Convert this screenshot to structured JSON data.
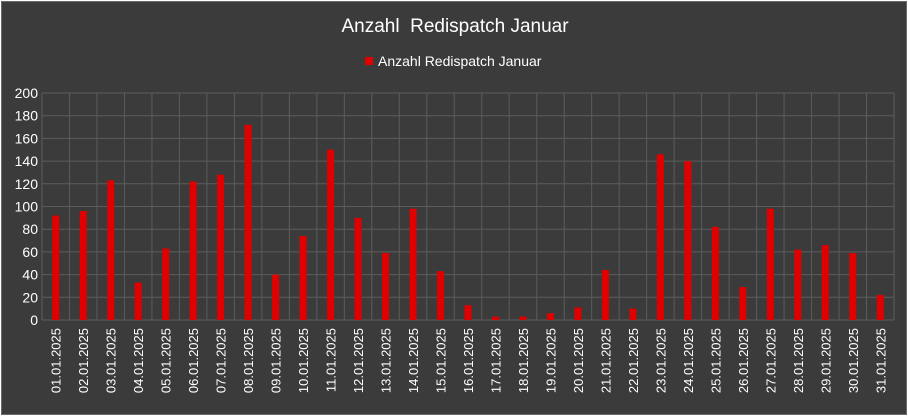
{
  "chart_data": {
    "type": "bar",
    "title": "Anzahl  Redispatch Januar",
    "legend": {
      "position": "top",
      "entries": [
        "Anzahl Redispatch Januar"
      ]
    },
    "xlabel": "",
    "ylabel": "",
    "ylim": [
      0,
      200
    ],
    "yticks": [
      0,
      20,
      40,
      60,
      80,
      100,
      120,
      140,
      160,
      180,
      200
    ],
    "grid": true,
    "colors": {
      "bar": "#e00000",
      "background": "#3b3b3b",
      "grid": "#5c5c5c",
      "text": "#ffffff"
    },
    "categories": [
      "01.01.2025",
      "02.01.2025",
      "03.01.2025",
      "04.01.2025",
      "05.01.2025",
      "06.01.2025",
      "07.01.2025",
      "08.01.2025",
      "09.01.2025",
      "10.01.2025",
      "11.01.2025",
      "12.01.2025",
      "13.01.2025",
      "14.01.2025",
      "15.01.2025",
      "16.01.2025",
      "17.01.2025",
      "18.01.2025",
      "19.01.2025",
      "20.01.2025",
      "21.01.2025",
      "22.01.2025",
      "23.01.2025",
      "24.01.2025",
      "25.01.2025",
      "26.01.2025",
      "27.01.2025",
      "28.01.2025",
      "29.01.2025",
      "30.01.2025",
      "31.01.2025"
    ],
    "series": [
      {
        "name": "Anzahl Redispatch Januar",
        "values": [
          92,
          96,
          123,
          33,
          63,
          122,
          128,
          172,
          40,
          74,
          150,
          90,
          59,
          98,
          43,
          13,
          3,
          3,
          6,
          11,
          44,
          10,
          146,
          140,
          82,
          29,
          98,
          62,
          66,
          59,
          22
        ]
      }
    ]
  }
}
